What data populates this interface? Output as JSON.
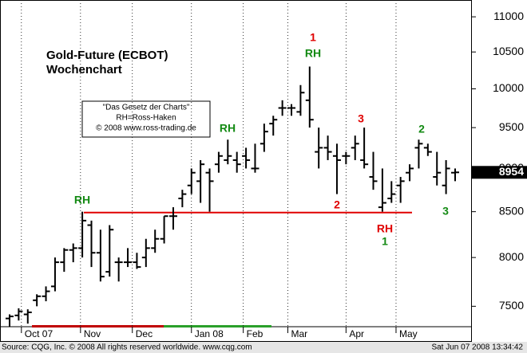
{
  "chart_data": {
    "type": "ohlc",
    "title": "Gold-Future (ECBOT)",
    "subtitle": "Wochenchart",
    "info_box": [
      "\"Das Gesetz der Charts\"",
      "RH=Ross-Haken",
      "© 2008 www.ross-trading.de"
    ],
    "categories": [
      null,
      null,
      null,
      null,
      null,
      null,
      null,
      null,
      null,
      null,
      null,
      null,
      null,
      null,
      null,
      null,
      null,
      null,
      null,
      null,
      null,
      null,
      null,
      null,
      null,
      null,
      null,
      null,
      null,
      null,
      null,
      null,
      null,
      null,
      null,
      null,
      null,
      null,
      null,
      null,
      null,
      null,
      null,
      null,
      null,
      null,
      null,
      null,
      null,
      null
    ],
    "open": [
      7380,
      7410,
      7420,
      7560,
      7600,
      7700,
      7950,
      8080,
      8100,
      8350,
      8050,
      7850,
      7950,
      7950,
      7950,
      8000,
      8100,
      8200,
      8450,
      8650,
      8800,
      8850,
      8950,
      9050,
      9100,
      9100,
      9150,
      9000,
      9300,
      9550,
      9750,
      9750,
      9700,
      9850,
      9200,
      9250,
      9150,
      9150,
      9250,
      9100,
      8900,
      8550,
      8650,
      8800,
      8950,
      9250,
      9250,
      8900,
      8800,
      8950
    ],
    "high": [
      7420,
      7480,
      7470,
      7620,
      7700,
      8000,
      8100,
      8150,
      8500,
      8400,
      8300,
      8350,
      8000,
      8100,
      8050,
      8200,
      8300,
      8450,
      8550,
      8750,
      9000,
      9100,
      9000,
      9200,
      9350,
      9200,
      9250,
      9300,
      9550,
      9650,
      9850,
      9800,
      10050,
      10300,
      9500,
      9400,
      9300,
      9200,
      9400,
      9500,
      9200,
      9000,
      8850,
      8900,
      9050,
      9350,
      9300,
      9200,
      9100,
      9000
    ],
    "low": [
      7300,
      7360,
      7330,
      7500,
      7550,
      7650,
      7850,
      7950,
      8000,
      7900,
      7750,
      7800,
      7750,
      7900,
      7880,
      7900,
      8050,
      8150,
      8300,
      8550,
      8700,
      8600,
      8500,
      8950,
      9050,
      8950,
      9000,
      8950,
      9200,
      9400,
      9650,
      9650,
      9650,
      9500,
      9000,
      9100,
      8700,
      9050,
      9100,
      9000,
      8750,
      8500,
      8600,
      8600,
      8850,
      9000,
      9150,
      8800,
      8700,
      8850
    ],
    "close": [
      7400,
      7450,
      7440,
      7600,
      7650,
      7950,
      8080,
      8100,
      8400,
      8050,
      7800,
      8300,
      7950,
      7950,
      7900,
      8100,
      8200,
      8450,
      8450,
      8700,
      8950,
      9050,
      8850,
      9150,
      9150,
      9050,
      9100,
      9000,
      9450,
      9600,
      9750,
      9750,
      9950,
      9600,
      9250,
      9200,
      9100,
      9150,
      9300,
      9050,
      8850,
      8600,
      8700,
      8850,
      9000,
      9300,
      9200,
      8950,
      9000,
      8954
    ],
    "color": "#000000",
    "log_scale": true,
    "ylim": [
      7300,
      11200
    ],
    "yticks": [
      7500,
      8000,
      8500,
      9000,
      9500,
      10000,
      10500,
      11000
    ],
    "xticks": [
      {
        "value": 1.3,
        "label": "Oct 07"
      },
      {
        "value": 7.8,
        "label": "Nov"
      },
      {
        "value": 13.5,
        "label": "Dec"
      },
      {
        "value": 20,
        "label": "Jan 08"
      },
      {
        "value": 25.7,
        "label": "Feb"
      },
      {
        "value": 30.6,
        "label": "Mar"
      },
      {
        "value": 37,
        "label": "Apr"
      },
      {
        "value": 42.5,
        "label": "May"
      }
    ],
    "grid": true,
    "support_line": {
      "value": 8490,
      "color": "#e00000"
    },
    "last_price": 8954,
    "annotations": [
      {
        "text": "RH",
        "color": "#138a13"
      },
      {
        "text": "RH",
        "color": "#138a13"
      },
      {
        "text": "1",
        "color": "#e00000"
      },
      {
        "text": "RH",
        "color": "#138a13"
      },
      {
        "text": "3",
        "color": "#e00000"
      },
      {
        "text": "2",
        "color": "#138a13"
      },
      {
        "text": "2",
        "color": "#e00000"
      },
      {
        "text": "RH",
        "color": "#e00000"
      },
      {
        "text": "1",
        "color": "#138a13"
      },
      {
        "text": "3",
        "color": "#138a13"
      }
    ],
    "footer_left": "Source: CQG, Inc. © 2008 All rights reserved worldwide. www.cqg.com",
    "footer_right": "Sat Jun 07 2008 13:34:42"
  }
}
